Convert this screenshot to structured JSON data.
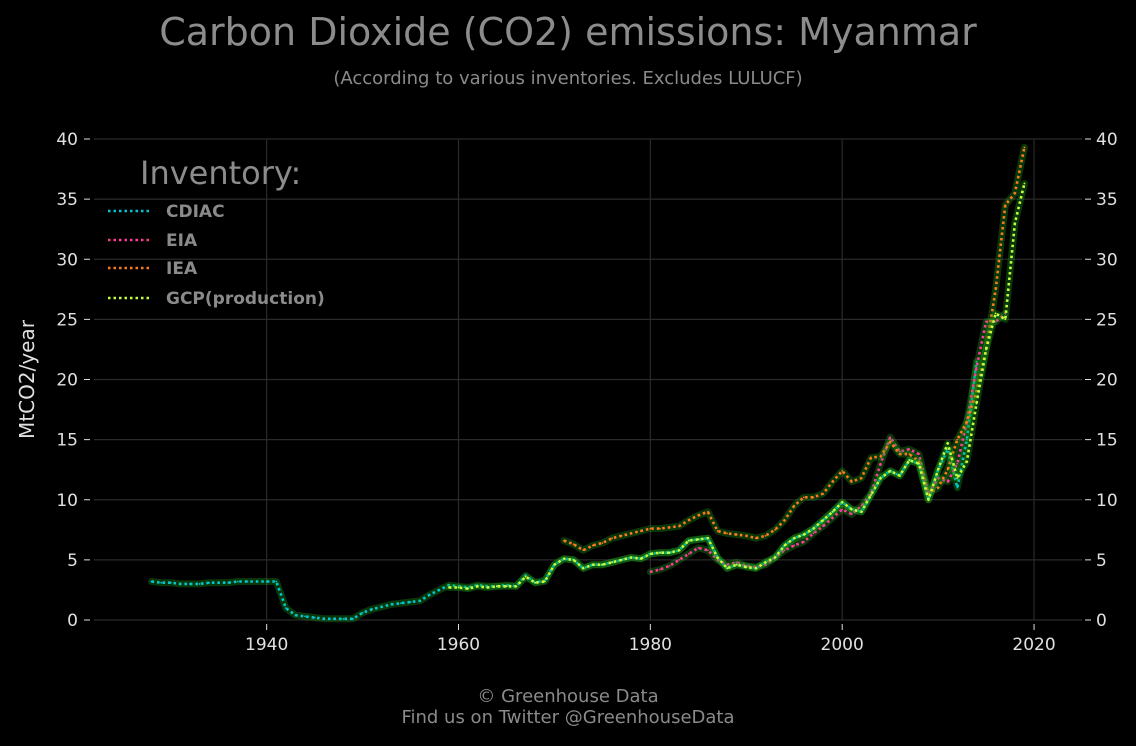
{
  "colors": {
    "background": "#000000",
    "grid": "#2a2a2a",
    "axis_text": "#e0e0e0",
    "title": "#8c8c8c",
    "cdiac": "#00c8d2",
    "eia": "#ff3c9a",
    "iea": "#ff7a1a",
    "gcp": "#c8ff3c",
    "glow": "#1e9e1e"
  },
  "chart_data": {
    "type": "line",
    "title": "Carbon Dioxide (CO2) emissions: Myanmar",
    "subtitle": "(According to various inventories. Excludes LULUCF)",
    "ylabel": "MtCO2/year",
    "xlabel": "",
    "xlim": [
      1922,
      2025
    ],
    "ylim": [
      0,
      40
    ],
    "x_ticks": [
      1940,
      1960,
      1980,
      2000,
      2020
    ],
    "y_ticks": [
      0,
      5,
      10,
      15,
      20,
      25,
      30,
      35,
      40
    ],
    "grid": true,
    "legend_title": "Inventory:",
    "legend_position": "top-left",
    "series": [
      {
        "name": "CDIAC",
        "key": "cdiac",
        "x": [
          1928,
          1929,
          1930,
          1931,
          1932,
          1933,
          1934,
          1935,
          1936,
          1937,
          1938,
          1939,
          1940,
          1941,
          1942,
          1943,
          1944,
          1945,
          1946,
          1947,
          1948,
          1949,
          1950,
          1951,
          1952,
          1953,
          1954,
          1955,
          1956,
          1957,
          1958,
          1959,
          1960,
          1961,
          1962,
          1963,
          1964,
          1965,
          1966,
          1967,
          1968,
          1969,
          1970,
          1971,
          1972,
          1973,
          1974,
          1975,
          1976,
          1977,
          1978,
          1979,
          1980,
          1981,
          1982,
          1983,
          1984,
          1985,
          1986,
          1987,
          1988,
          1989,
          1990,
          1991,
          1992,
          1993,
          1994,
          1995,
          1996,
          1997,
          1998,
          1999,
          2000,
          2001,
          2002,
          2003,
          2004,
          2005,
          2006,
          2007,
          2008,
          2009,
          2010,
          2011,
          2012,
          2013,
          2014
        ],
        "values": [
          3.2,
          3.1,
          3.1,
          3.0,
          3.0,
          3.0,
          3.1,
          3.1,
          3.1,
          3.2,
          3.2,
          3.2,
          3.2,
          3.2,
          1.0,
          0.4,
          0.3,
          0.2,
          0.1,
          0.1,
          0.1,
          0.1,
          0.6,
          0.9,
          1.1,
          1.3,
          1.4,
          1.5,
          1.6,
          2.1,
          2.5,
          2.9,
          2.8,
          2.7,
          2.9,
          2.8,
          2.8,
          2.9,
          2.8,
          3.7,
          3.1,
          3.3,
          4.6,
          5.1,
          5.0,
          4.3,
          4.6,
          4.6,
          4.8,
          5.0,
          5.2,
          5.1,
          5.5,
          5.6,
          5.6,
          5.8,
          6.6,
          6.7,
          6.8,
          5.2,
          4.3,
          4.6,
          4.5,
          4.3,
          4.8,
          5.2,
          6.2,
          6.8,
          7.1,
          7.6,
          8.3,
          9.0,
          9.8,
          9.2,
          9.0,
          10.4,
          11.8,
          12.4,
          12.0,
          13.3,
          13.0,
          10.0,
          12.5,
          14.2,
          11.0,
          15.0,
          21.5
        ]
      },
      {
        "name": "EIA",
        "key": "eia",
        "x": [
          1980,
          1981,
          1982,
          1983,
          1984,
          1985,
          1986,
          1987,
          1988,
          1989,
          1990,
          1991,
          1992,
          1993,
          1994,
          1995,
          1996,
          1997,
          1998,
          1999,
          2000,
          2001,
          2002,
          2003,
          2004,
          2005,
          2006,
          2007,
          2008,
          2009,
          2010,
          2011,
          2012,
          2013,
          2014,
          2015,
          2016,
          2017
        ],
        "values": [
          4.0,
          4.2,
          4.5,
          5.0,
          5.5,
          6.0,
          5.8,
          5.0,
          4.6,
          4.8,
          4.5,
          4.4,
          4.6,
          5.2,
          5.8,
          6.2,
          6.5,
          7.2,
          7.8,
          8.5,
          9.2,
          8.8,
          9.5,
          10.5,
          13.0,
          15.2,
          14.0,
          14.2,
          13.8,
          10.5,
          11.8,
          11.5,
          13.0,
          16.5,
          21.0,
          24.8,
          24.8,
          25.5
        ]
      },
      {
        "name": "IEA",
        "key": "iea",
        "x": [
          1971,
          1972,
          1973,
          1974,
          1975,
          1976,
          1977,
          1978,
          1979,
          1980,
          1981,
          1982,
          1983,
          1984,
          1985,
          1986,
          1987,
          1988,
          1989,
          1990,
          1991,
          1992,
          1993,
          1994,
          1995,
          1996,
          1997,
          1998,
          1999,
          2000,
          2001,
          2002,
          2003,
          2004,
          2005,
          2006,
          2007,
          2008,
          2009,
          2010,
          2011,
          2012,
          2013,
          2014,
          2015,
          2016,
          2017,
          2018,
          2019
        ],
        "values": [
          6.6,
          6.3,
          5.8,
          6.2,
          6.4,
          6.8,
          7.0,
          7.2,
          7.4,
          7.6,
          7.6,
          7.7,
          7.8,
          8.3,
          8.7,
          9.0,
          7.4,
          7.2,
          7.1,
          7.0,
          6.8,
          7.0,
          7.5,
          8.3,
          9.5,
          10.2,
          10.2,
          10.5,
          11.5,
          12.4,
          11.5,
          11.8,
          13.5,
          13.6,
          14.8,
          13.8,
          13.8,
          13.2,
          10.5,
          11.0,
          12.5,
          15.0,
          16.5,
          19.0,
          22.5,
          27.5,
          34.5,
          35.5,
          39.3
        ]
      },
      {
        "name": "GCP(production)",
        "key": "gcp",
        "x": [
          1959,
          1960,
          1961,
          1962,
          1963,
          1964,
          1965,
          1966,
          1967,
          1968,
          1969,
          1970,
          1971,
          1972,
          1973,
          1974,
          1975,
          1976,
          1977,
          1978,
          1979,
          1980,
          1981,
          1982,
          1983,
          1984,
          1985,
          1986,
          1987,
          1988,
          1989,
          1990,
          1991,
          1992,
          1993,
          1994,
          1995,
          1996,
          1997,
          1998,
          1999,
          2000,
          2001,
          2002,
          2003,
          2004,
          2005,
          2006,
          2007,
          2008,
          2009,
          2010,
          2011,
          2012,
          2013,
          2014,
          2015,
          2016,
          2017,
          2018,
          2019
        ],
        "values": [
          2.7,
          2.7,
          2.6,
          2.8,
          2.7,
          2.8,
          2.8,
          2.8,
          3.6,
          3.1,
          3.2,
          4.6,
          5.1,
          5.0,
          4.3,
          4.6,
          4.6,
          4.8,
          5.0,
          5.2,
          5.1,
          5.5,
          5.6,
          5.6,
          5.8,
          6.6,
          6.7,
          6.8,
          5.2,
          4.3,
          4.6,
          4.4,
          4.3,
          4.8,
          5.2,
          6.2,
          6.8,
          7.1,
          7.6,
          8.3,
          9.0,
          9.8,
          9.2,
          9.0,
          10.4,
          11.8,
          12.4,
          12.0,
          13.3,
          13.0,
          10.0,
          12.5,
          14.7,
          11.8,
          13.2,
          18.0,
          22.5,
          25.5,
          25.0,
          33.0,
          36.3
        ]
      }
    ]
  },
  "footer": {
    "copyright": "© Greenhouse Data",
    "twitter": "Find us on Twitter @GreenhouseData"
  }
}
